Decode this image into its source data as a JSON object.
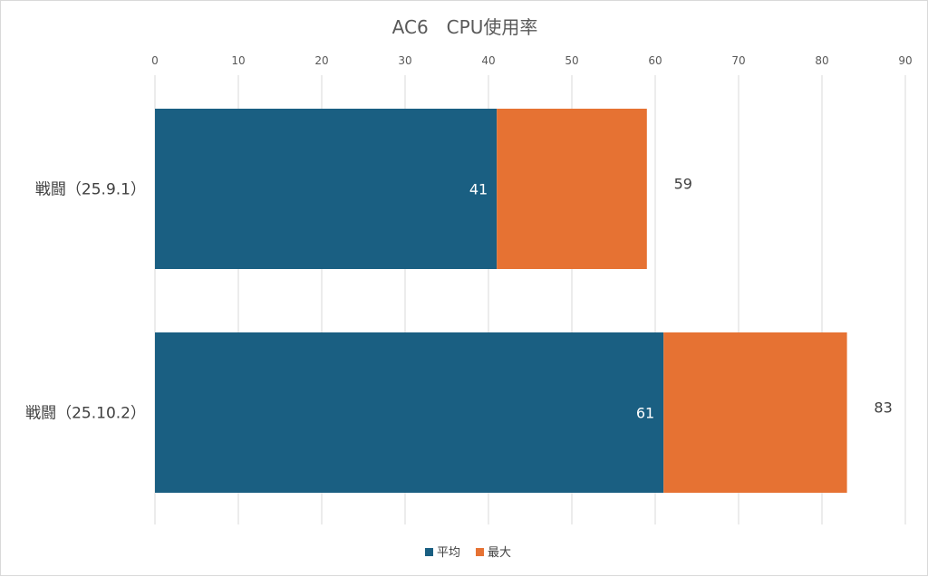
{
  "chart_data": {
    "type": "bar",
    "orientation": "horizontal",
    "title": "AC6　CPU使用率",
    "xlim": [
      0,
      90
    ],
    "ticks": [
      "0",
      "10",
      "20",
      "30",
      "40",
      "50",
      "60",
      "70",
      "80",
      "90"
    ],
    "tick_values": [
      0,
      10,
      20,
      30,
      40,
      50,
      60,
      70,
      80,
      90
    ],
    "grid": true,
    "legend_position": "bottom",
    "categories": [
      "戦闘（25.9.1）",
      "戦闘（25.10.2）"
    ],
    "series": [
      {
        "name": "平均",
        "color": "#1a5f82",
        "values": [
          41,
          61
        ],
        "labels": [
          "41",
          "61"
        ]
      },
      {
        "name": "最大",
        "color": "#e67233",
        "values": [
          59,
          83
        ],
        "labels": [
          "59",
          "83"
        ]
      }
    ]
  }
}
